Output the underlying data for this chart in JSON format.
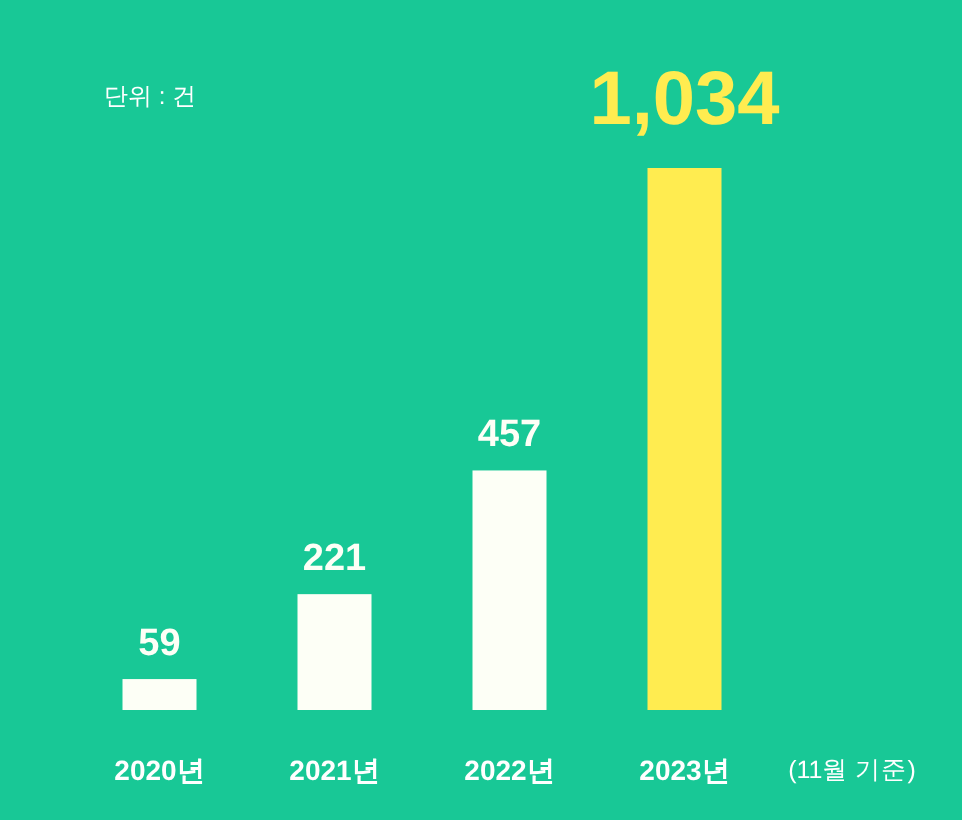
{
  "chart_data": {
    "type": "bar",
    "categories": [
      "2020년",
      "2021년",
      "2022년",
      "2023년"
    ],
    "values": [
      59,
      221,
      457,
      1034
    ],
    "colors": [
      "#fdfff6",
      "#fdfff6",
      "#fdfff6",
      "#ffec50"
    ],
    "value_labels": [
      "59",
      "221",
      "457",
      "1,034"
    ],
    "annotations": [
      "단위 : 건",
      "(11월 기준)"
    ]
  }
}
